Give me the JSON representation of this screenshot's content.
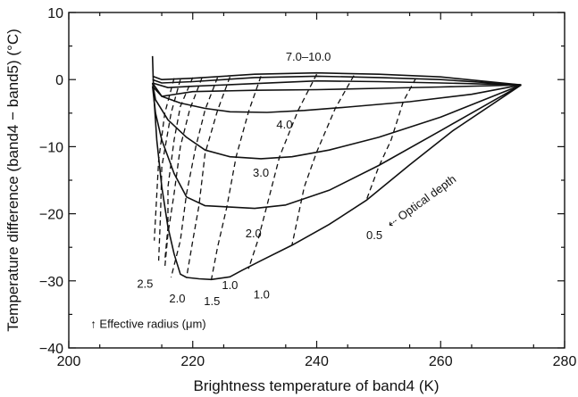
{
  "chart_data": {
    "type": "line",
    "xlabel": "Brightness temperature of band4 (K)",
    "ylabel": "Temperature difference (band4 − band5) (°C)",
    "xlim": [
      200,
      280
    ],
    "ylim": [
      -40,
      10
    ],
    "x_ticks": [
      200,
      220,
      240,
      260,
      280
    ],
    "y_ticks": [
      10,
      0,
      -10,
      -20,
      -30,
      -40
    ],
    "x_tick_labels": [
      "200",
      "220",
      "240",
      "260",
      "280"
    ],
    "y_tick_labels": [
      "10",
      "0",
      "−10",
      "−20",
      "−30",
      "−40"
    ],
    "grid": false,
    "solid_series": [
      {
        "name": "7.0–10.0",
        "points": [
          [
            213.5,
            0.5
          ],
          [
            215,
            0
          ],
          [
            220,
            0.2
          ],
          [
            230,
            0.8
          ],
          [
            240,
            1.0
          ],
          [
            250,
            0.8
          ],
          [
            260,
            0.4
          ],
          [
            273,
            -0.8
          ]
        ]
      },
      {
        "name": "",
        "points": [
          [
            213.5,
            0
          ],
          [
            215,
            -0.5
          ],
          [
            220,
            -0.3
          ],
          [
            230,
            0.3
          ],
          [
            240,
            0.5
          ],
          [
            250,
            0.3
          ],
          [
            260,
            0
          ],
          [
            273,
            -0.8
          ]
        ]
      },
      {
        "name": "",
        "points": [
          [
            213.5,
            -0.5
          ],
          [
            216,
            -1.2
          ],
          [
            220,
            -1.0
          ],
          [
            230,
            -0.6
          ],
          [
            240,
            -0.2
          ],
          [
            250,
            -0.3
          ],
          [
            260,
            -0.5
          ],
          [
            273,
            -0.8
          ]
        ]
      },
      {
        "name": "",
        "points": [
          [
            213.5,
            -1
          ],
          [
            215,
            -2.5
          ],
          [
            220,
            -1.8
          ],
          [
            230,
            -1.6
          ],
          [
            240,
            -1.5
          ],
          [
            250,
            -1.3
          ],
          [
            260,
            -1.1
          ],
          [
            273,
            -0.8
          ]
        ]
      },
      {
        "name": "4.0",
        "points": [
          [
            213.5,
            -0.5
          ],
          [
            215,
            -2.5
          ],
          [
            218,
            -3.5
          ],
          [
            222,
            -4.3
          ],
          [
            226,
            -4.8
          ],
          [
            232,
            -4.9
          ],
          [
            238,
            -4.6
          ],
          [
            245,
            -4.1
          ],
          [
            255,
            -3.3
          ],
          [
            265,
            -2.2
          ],
          [
            273,
            -0.8
          ]
        ]
      },
      {
        "name": "3.0",
        "points": [
          [
            213.5,
            -0.5
          ],
          [
            214,
            -3
          ],
          [
            216,
            -6
          ],
          [
            219,
            -8.6
          ],
          [
            222,
            -10.5
          ],
          [
            226,
            -11.5
          ],
          [
            231,
            -11.8
          ],
          [
            236,
            -11.5
          ],
          [
            242,
            -10.5
          ],
          [
            250,
            -8.6
          ],
          [
            260,
            -5.6
          ],
          [
            273,
            -0.8
          ]
        ]
      },
      {
        "name": "2.0",
        "points": [
          [
            213.5,
            -1
          ],
          [
            214,
            -5
          ],
          [
            215,
            -9
          ],
          [
            217,
            -14
          ],
          [
            219,
            -17.5
          ],
          [
            222,
            -18.8
          ],
          [
            226,
            -19.0
          ],
          [
            230,
            -19.2
          ],
          [
            235,
            -18.7
          ],
          [
            242,
            -16.5
          ],
          [
            250,
            -12.8
          ],
          [
            260,
            -7.6
          ],
          [
            273,
            -0.8
          ]
        ]
      },
      {
        "name": "0.5",
        "points": [
          [
            213.5,
            3.5
          ],
          [
            213.7,
            -2
          ],
          [
            214.2,
            -9
          ],
          [
            215,
            -16
          ],
          [
            216,
            -22
          ],
          [
            217,
            -26
          ],
          [
            218,
            -29
          ],
          [
            219,
            -29.5
          ],
          [
            221,
            -29.7
          ],
          [
            223,
            -29.8
          ],
          [
            226,
            -29.4
          ],
          [
            228,
            -28.4
          ],
          [
            231,
            -27.0
          ],
          [
            236,
            -24.7
          ],
          [
            242,
            -21.6
          ],
          [
            248,
            -18.0
          ],
          [
            255,
            -12.7
          ],
          [
            262,
            -7.6
          ],
          [
            273,
            -0.8
          ]
        ]
      }
    ],
    "dashed_lines": [
      [
        [
          217,
          0.2
        ],
        [
          215.5,
          -5
        ],
        [
          214.5,
          -12
        ],
        [
          213.8,
          -24
        ]
      ],
      [
        [
          218,
          0
        ],
        [
          216.5,
          -5
        ],
        [
          215,
          -13
        ],
        [
          214.8,
          -20
        ],
        [
          214.5,
          -27
        ]
      ],
      [
        [
          220,
          0.3
        ],
        [
          218,
          -4
        ],
        [
          217,
          -9
        ],
        [
          216,
          -16
        ],
        [
          216,
          -22
        ],
        [
          215.5,
          -27
        ]
      ],
      [
        [
          221.5,
          0.3
        ],
        [
          219.5,
          -4.5
        ],
        [
          218,
          -10
        ],
        [
          217,
          -17
        ],
        [
          216,
          -23
        ],
        [
          215.5,
          -28
        ]
      ],
      [
        [
          224,
          0.3
        ],
        [
          222,
          -4.5
        ],
        [
          220.5,
          -10
        ],
        [
          219,
          -17
        ],
        [
          218,
          -24
        ],
        [
          216.5,
          -29.5
        ]
      ],
      [
        [
          226,
          0.4
        ],
        [
          224,
          -4.6
        ],
        [
          222,
          -11
        ],
        [
          221,
          -18.8
        ],
        [
          220,
          -24
        ],
        [
          219,
          -29.5
        ]
      ],
      [
        [
          231,
          0.5
        ],
        [
          229,
          -4.8
        ],
        [
          227,
          -11.5
        ],
        [
          225.5,
          -19
        ],
        [
          224,
          -25
        ],
        [
          223,
          -29.8
        ]
      ],
      [
        [
          240,
          0.8
        ],
        [
          237,
          -4.6
        ],
        [
          234,
          -11.5
        ],
        [
          232,
          -18.7
        ],
        [
          230.5,
          -24
        ],
        [
          229,
          -28.2
        ]
      ],
      [
        [
          246,
          0.6
        ],
        [
          243,
          -4.3
        ],
        [
          240,
          -10.8
        ],
        [
          238,
          -16
        ],
        [
          236,
          -24.7
        ]
      ],
      [
        [
          256,
          0.2
        ],
        [
          254,
          -3.2
        ],
        [
          252,
          -9
        ],
        [
          250,
          -13
        ],
        [
          248,
          -18
        ]
      ]
    ],
    "annotations": [
      {
        "text": "7.0–10.0",
        "x": 235,
        "y": 2.8
      },
      {
        "text": "4.0",
        "x": 233.5,
        "y": -7.3
      },
      {
        "text": "3.0",
        "x": 229.7,
        "y": -14.5
      },
      {
        "text": "2.0",
        "x": 228.5,
        "y": -23.5
      },
      {
        "text": "0.5",
        "x": 248,
        "y": -23.8
      },
      {
        "text": "2.5",
        "x": 211,
        "y": -31
      },
      {
        "text": "2.0",
        "x": 216.2,
        "y": -33.2
      },
      {
        "text": "1.5",
        "x": 221.8,
        "y": -33.6
      },
      {
        "text": "1.0",
        "x": 224.7,
        "y": -31.2
      },
      {
        "text": "1.0",
        "x": 229.8,
        "y": -32.6
      },
      {
        "text": "↑ Effective radius (μm)",
        "x": 203.5,
        "y": -37
      },
      {
        "text": "⇠ Optical depth",
        "x": 252,
        "y": -22.2,
        "angle": -36
      }
    ]
  }
}
